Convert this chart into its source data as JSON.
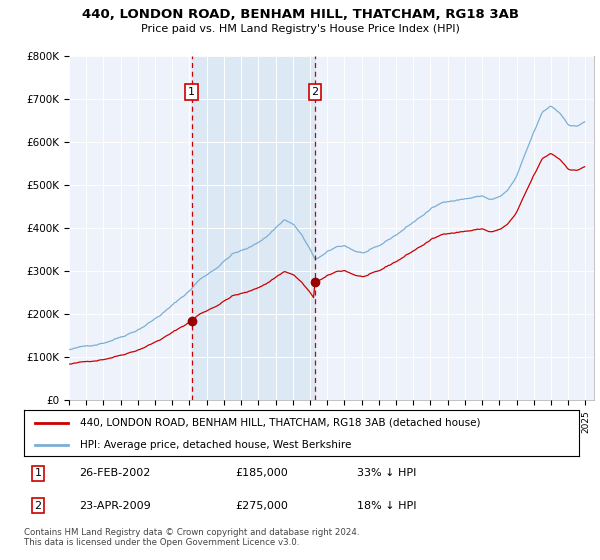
{
  "title": "440, LONDON ROAD, BENHAM HILL, THATCHAM, RG18 3AB",
  "subtitle": "Price paid vs. HM Land Registry's House Price Index (HPI)",
  "ylabel_ticks": [
    "£0",
    "£100K",
    "£200K",
    "£300K",
    "£400K",
    "£500K",
    "£600K",
    "£700K",
    "£800K"
  ],
  "ylim": [
    0,
    800000
  ],
  "xlim_start": 1995.0,
  "xlim_end": 2025.5,
  "purchase1_year": 2002.15,
  "purchase1_price": 185000,
  "purchase1_label": "1",
  "purchase2_year": 2009.31,
  "purchase2_price": 275000,
  "purchase2_label": "2",
  "legend_house": "440, LONDON ROAD, BENHAM HILL, THATCHAM, RG18 3AB (detached house)",
  "legend_hpi": "HPI: Average price, detached house, West Berkshire",
  "table_rows": [
    [
      "1",
      "26-FEB-2002",
      "£185,000",
      "33% ↓ HPI"
    ],
    [
      "2",
      "23-APR-2009",
      "£275,000",
      "18% ↓ HPI"
    ]
  ],
  "footer": "Contains HM Land Registry data © Crown copyright and database right 2024.\nThis data is licensed under the Open Government Licence v3.0.",
  "house_color": "#cc0000",
  "hpi_color": "#7bafd4",
  "shade_color": "#dce9f5",
  "purchase_dot_color": "#990000",
  "vline_color": "#cc0000",
  "bg_color": "#eef3fb"
}
